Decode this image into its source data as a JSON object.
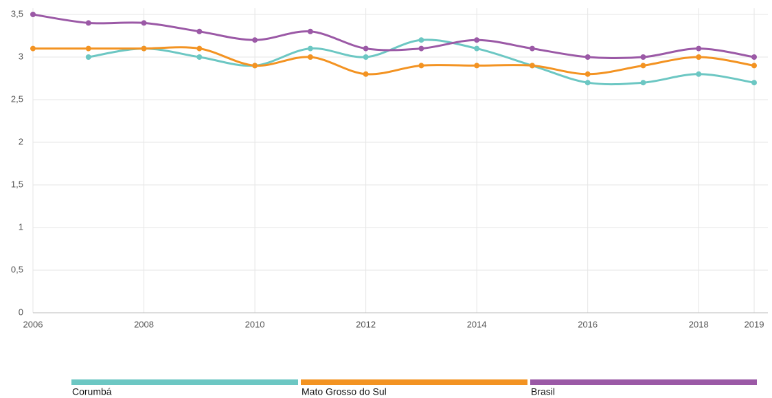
{
  "chart_data": {
    "type": "line",
    "x": [
      2006,
      2007,
      2008,
      2009,
      2010,
      2011,
      2012,
      2013,
      2014,
      2015,
      2016,
      2017,
      2018,
      2019
    ],
    "series": [
      {
        "name": "Corumbá",
        "color": "#6cc7c3",
        "values": [
          null,
          3.0,
          3.1,
          3.0,
          2.9,
          3.1,
          3.0,
          3.2,
          3.1,
          2.9,
          2.7,
          2.7,
          2.8,
          2.7
        ]
      },
      {
        "name": "Mato Grosso do Sul",
        "color": "#f39322",
        "values": [
          3.1,
          3.1,
          3.1,
          3.1,
          2.9,
          3.0,
          2.8,
          2.9,
          2.9,
          2.9,
          2.8,
          2.9,
          3.0,
          2.9
        ]
      },
      {
        "name": "Brasil",
        "color": "#9b59a6",
        "values": [
          3.5,
          3.4,
          3.4,
          3.3,
          3.2,
          3.3,
          3.1,
          3.1,
          3.2,
          3.1,
          3.0,
          3.0,
          3.1,
          3.0
        ]
      }
    ],
    "xlim": [
      2006,
      2019
    ],
    "xticks": [
      2006,
      2008,
      2010,
      2012,
      2014,
      2016,
      2018,
      2019
    ],
    "ylim": [
      0,
      3.5
    ],
    "yticks": [
      0,
      {
        "value": 0.5,
        "label": "0,5"
      },
      1,
      {
        "value": 1.5,
        "label": "1,5"
      },
      2,
      {
        "value": 2.5,
        "label": "2,5"
      },
      3,
      {
        "value": 3.5,
        "label": "3,5"
      }
    ],
    "grid": true,
    "legend": "bottom"
  }
}
